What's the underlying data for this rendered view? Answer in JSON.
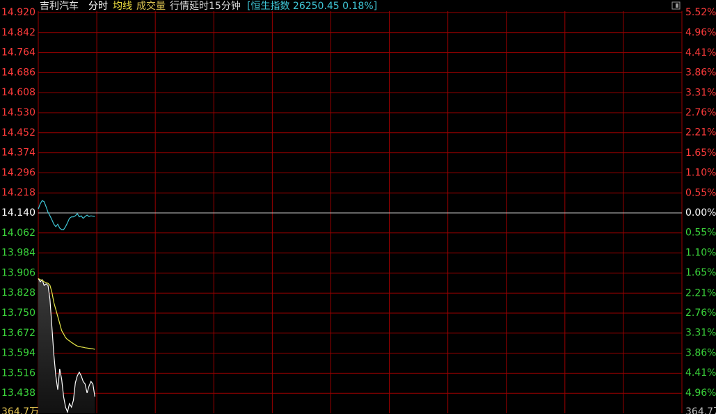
{
  "header": {
    "stock": "吉利汽车",
    "tabs": [
      "分时",
      "均线",
      "成交量"
    ],
    "delay": "行情延时15分钟",
    "index": "[恒生指数 26250.45 0.18%]"
  },
  "volume_label": "364.7万",
  "chart_data": {
    "type": "line",
    "x": [
      0,
      1,
      2,
      3,
      4,
      5,
      6,
      7,
      8,
      9,
      10,
      11,
      12,
      13,
      14,
      15,
      16,
      17,
      18,
      19,
      20,
      21,
      22,
      23,
      24,
      25,
      26,
      27,
      28,
      29
    ],
    "xlim": [
      0,
      330
    ],
    "xticks": [
      0,
      30,
      60,
      90,
      120,
      150,
      180,
      210,
      240,
      270,
      300,
      330
    ],
    "ylim": [
      13.36,
      14.92
    ],
    "yticks": [
      {
        "value": 14.92,
        "label": "14.920"
      },
      {
        "value": 14.842,
        "label": "14.842"
      },
      {
        "value": 14.764,
        "label": "14.764"
      },
      {
        "value": 14.686,
        "label": "14.686"
      },
      {
        "value": 14.608,
        "label": "14.608"
      },
      {
        "value": 14.53,
        "label": "14.530"
      },
      {
        "value": 14.452,
        "label": "14.452"
      },
      {
        "value": 14.374,
        "label": "14.374"
      },
      {
        "value": 14.296,
        "label": "14.296"
      },
      {
        "value": 14.218,
        "label": "14.218"
      },
      {
        "value": 14.14,
        "label": "14.140"
      },
      {
        "value": 14.062,
        "label": "14.062"
      },
      {
        "value": 13.984,
        "label": "13.984"
      },
      {
        "value": 13.906,
        "label": "13.906"
      },
      {
        "value": 13.828,
        "label": "13.828"
      },
      {
        "value": 13.75,
        "label": "13.750"
      },
      {
        "value": 13.672,
        "label": "13.672"
      },
      {
        "value": 13.594,
        "label": "13.594"
      },
      {
        "value": 13.516,
        "label": "13.516"
      },
      {
        "value": 13.438,
        "label": "13.438"
      }
    ],
    "y2lim": [
      -5.52,
      5.52
    ],
    "y2ticks": [
      {
        "value": 5.52,
        "label": "5.52%"
      },
      {
        "value": 4.96,
        "label": "4.96%"
      },
      {
        "value": 4.41,
        "label": "4.41%"
      },
      {
        "value": 3.86,
        "label": "3.86%"
      },
      {
        "value": 3.31,
        "label": "3.31%"
      },
      {
        "value": 2.76,
        "label": "2.76%"
      },
      {
        "value": 2.21,
        "label": "2.21%"
      },
      {
        "value": 1.65,
        "label": "1.65%"
      },
      {
        "value": 1.1,
        "label": "1.10%"
      },
      {
        "value": 0.55,
        "label": "0.55%"
      },
      {
        "value": 0,
        "label": "0.00%"
      },
      {
        "value": -0.55,
        "label": "0.55%"
      },
      {
        "value": -1.1,
        "label": "1.10%"
      },
      {
        "value": -1.65,
        "label": "1.65%"
      },
      {
        "value": -2.21,
        "label": "2.21%"
      },
      {
        "value": -2.76,
        "label": "2.76%"
      },
      {
        "value": -3.31,
        "label": "3.31%"
      },
      {
        "value": -3.86,
        "label": "3.86%"
      },
      {
        "value": -4.41,
        "label": "4.41%"
      },
      {
        "value": -4.96,
        "label": "4.96%"
      }
    ],
    "grid": true,
    "series": [
      {
        "color": "#ffffff",
        "fill": true,
        "values": [
          13.885,
          13.872,
          13.88,
          13.858,
          13.864,
          13.858,
          13.804,
          13.696,
          13.588,
          13.506,
          13.452,
          13.533,
          13.493,
          13.425,
          13.384,
          13.365,
          13.398,
          13.384,
          13.411,
          13.479,
          13.506,
          13.52,
          13.506,
          13.484,
          13.474,
          13.439,
          13.466,
          13.484,
          13.474,
          13.425
        ]
      },
      {
        "color": "#e8e84a",
        "values": [
          13.885,
          13.88,
          13.878,
          13.872,
          13.868,
          13.866,
          13.858,
          13.831,
          13.791,
          13.764,
          13.737,
          13.71,
          13.682,
          13.669,
          13.655,
          13.647,
          13.642,
          13.636,
          13.631,
          13.626,
          13.622,
          13.62,
          13.618,
          13.617,
          13.615,
          13.614,
          13.613,
          13.612,
          13.611,
          13.609
        ]
      },
      {
        "color": "#3fc6d6",
        "axis": "y2",
        "values": [
          0.11,
          0.25,
          0.34,
          0.31,
          0.17,
          0.02,
          -0.08,
          -0.19,
          -0.31,
          -0.38,
          -0.31,
          -0.42,
          -0.46,
          -0.46,
          -0.38,
          -0.27,
          -0.15,
          -0.11,
          -0.11,
          -0.08,
          -0.02,
          -0.11,
          -0.08,
          -0.15,
          -0.1,
          -0.06,
          -0.1,
          -0.08,
          -0.09,
          -0.1
        ]
      }
    ]
  }
}
